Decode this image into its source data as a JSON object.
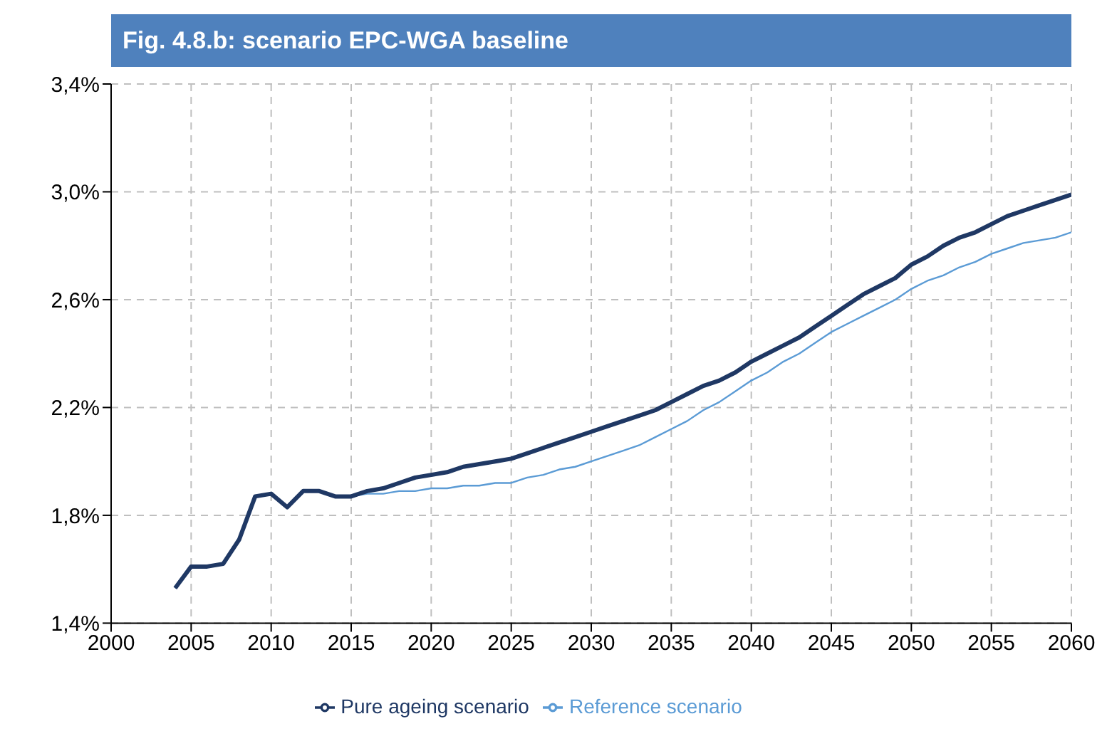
{
  "chart_data": {
    "type": "line",
    "title": "Fig. 4.8.b: scenario EPC-WGA baseline",
    "x": [
      2004,
      2005,
      2006,
      2007,
      2008,
      2009,
      2010,
      2011,
      2012,
      2013,
      2014,
      2015,
      2016,
      2017,
      2018,
      2019,
      2020,
      2021,
      2022,
      2023,
      2024,
      2025,
      2026,
      2027,
      2028,
      2029,
      2030,
      2031,
      2032,
      2033,
      2034,
      2035,
      2036,
      2037,
      2038,
      2039,
      2040,
      2041,
      2042,
      2043,
      2044,
      2045,
      2046,
      2047,
      2048,
      2049,
      2050,
      2051,
      2052,
      2053,
      2054,
      2055,
      2056,
      2057,
      2058,
      2059,
      2060
    ],
    "series": [
      {
        "name": "Reference scenario",
        "color": "#5b9bd5",
        "values": [
          1.53,
          1.61,
          1.61,
          1.62,
          1.71,
          1.87,
          1.88,
          1.83,
          1.89,
          1.89,
          1.87,
          1.87,
          1.88,
          1.88,
          1.89,
          1.89,
          1.9,
          1.9,
          1.91,
          1.91,
          1.92,
          1.92,
          1.94,
          1.95,
          1.97,
          1.98,
          2.0,
          2.02,
          2.04,
          2.06,
          2.09,
          2.12,
          2.15,
          2.19,
          2.22,
          2.26,
          2.3,
          2.33,
          2.37,
          2.4,
          2.44,
          2.48,
          2.51,
          2.54,
          2.57,
          2.6,
          2.64,
          2.67,
          2.69,
          2.72,
          2.74,
          2.77,
          2.79,
          2.81,
          2.82,
          2.83,
          2.85
        ]
      },
      {
        "name": "Pure ageing scenario",
        "color": "#1f3864",
        "values": [
          1.53,
          1.61,
          1.61,
          1.62,
          1.71,
          1.87,
          1.88,
          1.83,
          1.89,
          1.89,
          1.87,
          1.87,
          1.89,
          1.9,
          1.92,
          1.94,
          1.95,
          1.96,
          1.98,
          1.99,
          2.0,
          2.01,
          2.03,
          2.05,
          2.07,
          2.09,
          2.11,
          2.13,
          2.15,
          2.17,
          2.19,
          2.22,
          2.25,
          2.28,
          2.3,
          2.33,
          2.37,
          2.4,
          2.43,
          2.46,
          2.5,
          2.54,
          2.58,
          2.62,
          2.65,
          2.68,
          2.73,
          2.76,
          2.8,
          2.83,
          2.85,
          2.88,
          2.91,
          2.93,
          2.95,
          2.97,
          2.99
        ]
      }
    ],
    "xlim": [
      2000,
      2060
    ],
    "xticks": [
      2000,
      2005,
      2010,
      2015,
      2020,
      2025,
      2030,
      2035,
      2040,
      2045,
      2050,
      2055,
      2060
    ],
    "ylim": [
      1.4,
      3.4
    ],
    "yticks": [
      {
        "value": 1.4,
        "label": "1,4%"
      },
      {
        "value": 1.8,
        "label": "1,8%"
      },
      {
        "value": 2.2,
        "label": "2,2%"
      },
      {
        "value": 2.6,
        "label": "2,6%"
      },
      {
        "value": 3.0,
        "label": "3,0%"
      },
      {
        "value": 3.4,
        "label": "3,4%"
      }
    ],
    "grid": true,
    "legend": "bottom",
    "marker": "none",
    "line_style": "solid"
  }
}
